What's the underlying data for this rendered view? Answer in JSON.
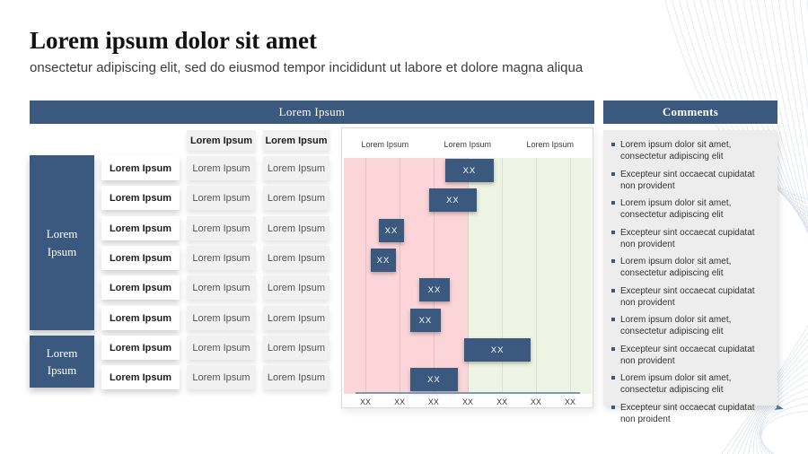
{
  "header": {
    "title": "Lorem ipsum dolor sit amet",
    "subtitle": "onsectetur adipiscing elit, sed do eiusmod tempor incididunt ut labore et dolore magna aliqua"
  },
  "main_panel_header": "Lorem Ipsum",
  "comments_panel": {
    "header": "Comments",
    "items": [
      "Lorem ipsum dolor sit amet, consectetur adipiscing elit",
      "Excepteur sint occaecat cupidatat non provident",
      "Lorem ipsum dolor sit amet, consectetur adipiscing elit",
      "Excepteur sint occaecat cupidatat non provident",
      "Lorem ipsum dolor sit amet, consectetur adipiscing elit",
      "Excepteur sint occaecat cupidatat non provident",
      "Lorem ipsum dolor sit amet, consectetur adipiscing elit",
      "Excepteur sint occaecat cupidatat non provident",
      "Lorem ipsum dolor sit amet, consectetur adipiscing elit",
      "Excepteur sint occaecat cupidatat non proident"
    ]
  },
  "table": {
    "column_headers": [
      "Lorem Ipsum",
      "Lorem Ipsum"
    ],
    "row_groups": [
      {
        "label": "Lorem Ipsum",
        "row_count": 6
      },
      {
        "label": "Lorem Ipsum",
        "row_count": 2
      }
    ],
    "rows": [
      {
        "label": "Lorem Ipsum",
        "cells": [
          "Lorem Ipsum",
          "Lorem Ipsum"
        ]
      },
      {
        "label": "Lorem Ipsum",
        "cells": [
          "Lorem Ipsum",
          "Lorem Ipsum"
        ]
      },
      {
        "label": "Lorem Ipsum",
        "cells": [
          "Lorem Ipsum",
          "Lorem Ipsum"
        ]
      },
      {
        "label": "Lorem Ipsum",
        "cells": [
          "Lorem Ipsum",
          "Lorem Ipsum"
        ]
      },
      {
        "label": "Lorem Ipsum",
        "cells": [
          "Lorem Ipsum",
          "Lorem Ipsum"
        ]
      },
      {
        "label": "Lorem Ipsum",
        "cells": [
          "Lorem Ipsum",
          "Lorem Ipsum"
        ]
      },
      {
        "label": "Lorem Ipsum",
        "cells": [
          "Lorem Ipsum",
          "Lorem Ipsum"
        ]
      },
      {
        "label": "Lorem Ipsum",
        "cells": [
          "Lorem Ipsum",
          "Lorem Ipsum"
        ]
      }
    ]
  },
  "chart_data": {
    "type": "gantt",
    "phase_labels": [
      "Lorem Ipsum",
      "Lorem Ipsum",
      "Lorem Ipsum"
    ],
    "x_tick_labels": [
      "XX",
      "XX",
      "XX",
      "XX",
      "XX",
      "XX",
      "XX"
    ],
    "x_tick_positions_pct": [
      8.7,
      22.5,
      36.2,
      50,
      63.8,
      77.5,
      91.3
    ],
    "regions": [
      {
        "name": "phase-left",
        "color": "#fbd5d8",
        "from_pct": 0,
        "to_pct": 50
      },
      {
        "name": "phase-right",
        "color": "#edf4e3",
        "from_pct": 50,
        "to_pct": 100
      }
    ],
    "bars": [
      {
        "row": 1,
        "label": "XX",
        "start_pct": 40.9,
        "end_pct": 60.5
      },
      {
        "row": 2,
        "label": "XX",
        "start_pct": 34.4,
        "end_pct": 53.6
      },
      {
        "row": 3,
        "label": "XX",
        "start_pct": 14.1,
        "end_pct": 24.3
      },
      {
        "row": 4,
        "label": "XX",
        "start_pct": 10.9,
        "end_pct": 21.0
      },
      {
        "row": 5,
        "label": "XX",
        "start_pct": 30.4,
        "end_pct": 42.8
      },
      {
        "row": 6,
        "label": "XX",
        "start_pct": 26.8,
        "end_pct": 39.1
      },
      {
        "row": 7,
        "label": "XX",
        "start_pct": 48.6,
        "end_pct": 75.4
      },
      {
        "row": 8,
        "label": "XX",
        "start_pct": 26.8,
        "end_pct": 46.0
      }
    ]
  },
  "colors": {
    "accent": "#3b587e",
    "pink_region": "#fbd5d8",
    "green_region": "#edf4e3",
    "pink_gridline": "#eebcc1",
    "green_gridline": "#d9e2ca",
    "boundary_gridline": "#d6d6bf",
    "panel_gray": "#ededed",
    "cell_gray": "#f1f1f1"
  }
}
